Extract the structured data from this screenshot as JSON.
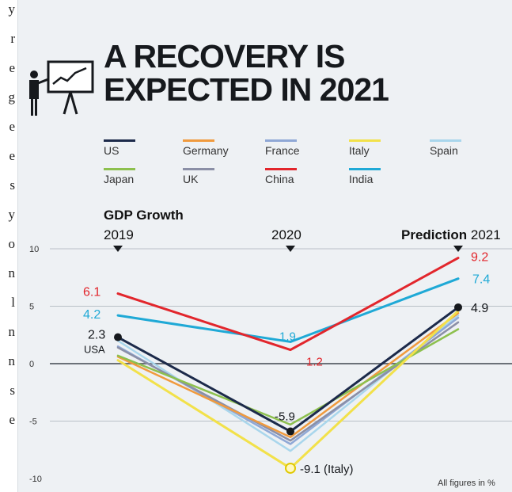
{
  "left_text": [
    "y",
    "r",
    "e",
    "g",
    "e",
    "e",
    "s",
    "y",
    "o",
    "n",
    "l",
    "n",
    "n",
    "s",
    "e"
  ],
  "title": "A RECOVERY IS EXPECTED IN 2021",
  "legend": [
    {
      "name": "US",
      "color": "#1c2a4a"
    },
    {
      "name": "Germany",
      "color": "#f09a3e"
    },
    {
      "name": "France",
      "color": "#8fa8d6"
    },
    {
      "name": "Italy",
      "color": "#f2e14a"
    },
    {
      "name": "Spain",
      "color": "#a9d6ec"
    },
    {
      "name": "Japan",
      "color": "#8dc04e"
    },
    {
      "name": "UK",
      "color": "#8b8fa6"
    },
    {
      "name": "China",
      "color": "#e2262c"
    },
    {
      "name": "India",
      "color": "#1fa9d6"
    }
  ],
  "gdp_heading": "GDP Growth",
  "year_2019": "2019",
  "year_2020": "2020",
  "prediction_word": "Prediction",
  "year_2021": "2021",
  "footnote": "All figures in %",
  "chart_data": {
    "type": "line",
    "x": [
      "2019",
      "2020",
      "2021"
    ],
    "ylim": [
      -10,
      10
    ],
    "yticks": [
      10,
      5,
      0,
      -5,
      -10
    ],
    "series": [
      {
        "name": "US",
        "values": [
          2.3,
          -5.9,
          4.9
        ],
        "color": "#1c2a4a"
      },
      {
        "name": "Germany",
        "values": [
          0.6,
          -6.4,
          4.4
        ],
        "color": "#f09a3e"
      },
      {
        "name": "France",
        "values": [
          1.5,
          -7.0,
          4.0
        ],
        "color": "#8fa8d6"
      },
      {
        "name": "Italy",
        "values": [
          0.3,
          -9.1,
          4.6
        ],
        "color": "#f2e14a"
      },
      {
        "name": "Spain",
        "values": [
          2.0,
          -7.6,
          4.2
        ],
        "color": "#a9d6ec"
      },
      {
        "name": "Japan",
        "values": [
          0.7,
          -5.3,
          3.0
        ],
        "color": "#8dc04e"
      },
      {
        "name": "UK",
        "values": [
          1.4,
          -6.7,
          3.6
        ],
        "color": "#8b8fa6"
      },
      {
        "name": "China",
        "values": [
          6.1,
          1.2,
          9.2
        ],
        "color": "#e2262c"
      },
      {
        "name": "India",
        "values": [
          4.2,
          1.9,
          7.4
        ],
        "color": "#1fa9d6"
      }
    ],
    "annotations": {
      "china_2019": "6.1",
      "china_2020": "1.2",
      "china_2021": "9.2",
      "india_2019": "4.2",
      "india_2020": "1.9",
      "india_2021": "7.4",
      "us_2019": "2.3",
      "us_2019_name": "USA",
      "us_2020": "-5.9",
      "us_2021": "4.9",
      "italy_2020": "-9.1 (Italy)"
    }
  }
}
